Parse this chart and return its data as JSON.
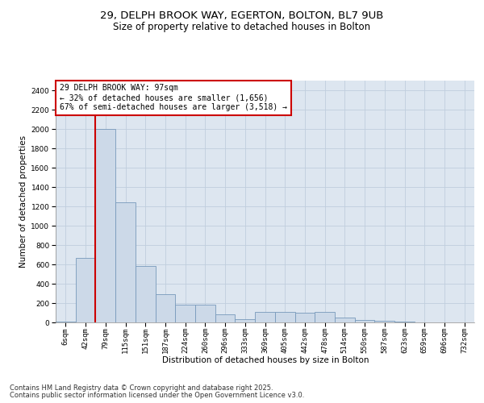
{
  "title_line1": "29, DELPH BROOK WAY, EGERTON, BOLTON, BL7 9UB",
  "title_line2": "Size of property relative to detached houses in Bolton",
  "xlabel": "Distribution of detached houses by size in Bolton",
  "ylabel": "Number of detached properties",
  "bar_color": "#ccd9e8",
  "bar_edge_color": "#7799bb",
  "grid_color": "#c0cedd",
  "background_color": "#dde6f0",
  "annotation_box_color": "#cc0000",
  "vline_color": "#cc0000",
  "bin_labels": [
    "6sqm",
    "42sqm",
    "79sqm",
    "115sqm",
    "151sqm",
    "187sqm",
    "224sqm",
    "260sqm",
    "296sqm",
    "333sqm",
    "369sqm",
    "405sqm",
    "442sqm",
    "478sqm",
    "514sqm",
    "550sqm",
    "587sqm",
    "623sqm",
    "659sqm",
    "696sqm",
    "732sqm"
  ],
  "bar_values": [
    10,
    670,
    2000,
    1240,
    580,
    295,
    180,
    180,
    80,
    30,
    110,
    105,
    100,
    105,
    50,
    25,
    20,
    5,
    3,
    2,
    0
  ],
  "ylim": [
    0,
    2500
  ],
  "yticks": [
    0,
    200,
    400,
    600,
    800,
    1000,
    1200,
    1400,
    1600,
    1800,
    2000,
    2200,
    2400
  ],
  "vline_bin_index": 2,
  "vline_left_edge": true,
  "annotation_text": "29 DELPH BROOK WAY: 97sqm\n← 32% of detached houses are smaller (1,656)\n67% of semi-detached houses are larger (3,518) →",
  "footer_line1": "Contains HM Land Registry data © Crown copyright and database right 2025.",
  "footer_line2": "Contains public sector information licensed under the Open Government Licence v3.0.",
  "title_fontsize": 9.5,
  "subtitle_fontsize": 8.5,
  "ylabel_fontsize": 7.5,
  "xlabel_fontsize": 7.5,
  "tick_fontsize": 6.5,
  "annotation_fontsize": 7,
  "footer_fontsize": 6
}
